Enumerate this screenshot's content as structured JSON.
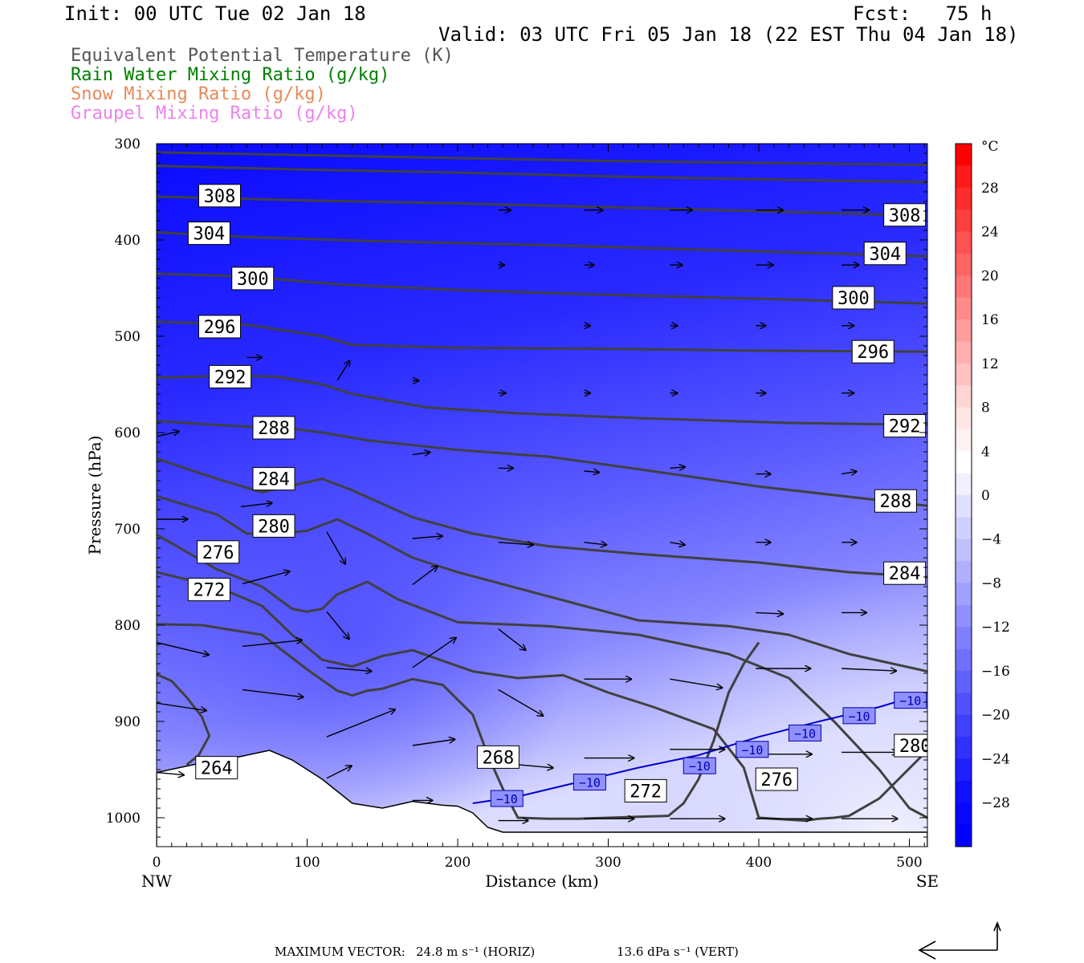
{
  "header": {
    "init": "Init: 00 UTC Tue 02 Jan 18",
    "fcst": "Fcst:   75 h",
    "valid": "Valid: 03 UTC Fri 05 Jan 18 (22 EST Thu 04 Jan 18)"
  },
  "legend": [
    {
      "label": "Equivalent Potential Temperature (K)",
      "color": "#555555"
    },
    {
      "label": "Rain Water Mixing Ratio (g/kg)",
      "color": "#008000"
    },
    {
      "label": "Snow Mixing Ratio (g/kg)",
      "color": "#e8895a"
    },
    {
      "label": "Graupel Mixing Ratio (g/kg)",
      "color": "#ee82ee"
    }
  ],
  "footer": {
    "max_vector_label": "MAXIMUM VECTOR:",
    "horiz": "24.8 m s⁻¹ (HORIZ)",
    "vert": "13.6 dPa s⁻¹ (VERT)"
  },
  "chart_data": {
    "type": "cross-section",
    "xlabel": "Distance (km)",
    "ylabel": "Pressure (hPa)",
    "xlim": [
      0,
      512
    ],
    "ylim": [
      1030,
      300
    ],
    "x_ticks": [
      0,
      100,
      200,
      300,
      400,
      500
    ],
    "y_ticks": [
      300,
      400,
      500,
      600,
      700,
      800,
      900,
      1000
    ],
    "x_end_labels": {
      "left": "NW",
      "right": "SE"
    },
    "colorbar": {
      "unit": "°C",
      "tick_labels": [
        "28",
        "24",
        "20",
        "16",
        "12",
        "8",
        "4",
        "0",
        "−4",
        "−8",
        "−12",
        "−16",
        "−20",
        "−24",
        "−28"
      ],
      "levels": [
        32,
        30,
        28,
        26,
        24,
        22,
        20,
        18,
        16,
        14,
        12,
        10,
        8,
        6,
        4,
        2,
        0,
        -2,
        -4,
        -6,
        -8,
        -10,
        -12,
        -14,
        -16,
        -18,
        -20,
        -22,
        -24,
        -26,
        -28,
        -30,
        -32
      ],
      "colors": [
        "#ff0000",
        "#ff1a1a",
        "#ff2d2d",
        "#ff3f3f",
        "#ff5252",
        "#ff6464",
        "#ff7777",
        "#ff8a8a",
        "#ff9c9c",
        "#ffafaf",
        "#ffc1c1",
        "#ffd4d4",
        "#ffe6e6",
        "#fff2f2",
        "#ffffff",
        "#f0f0ff",
        "#e0e0ff",
        "#d0d0ff",
        "#c0c0ff",
        "#b0b0ff",
        "#a0a0ff",
        "#9090ff",
        "#8080ff",
        "#7070ff",
        "#6060ff",
        "#5050ff",
        "#4040ff",
        "#3030ff",
        "#2020ff",
        "#1010ff",
        "#0808ff",
        "#0000ff"
      ]
    },
    "theta_e_labels": [
      {
        "text": "308",
        "x": 28,
        "p": 354
      },
      {
        "text": "308",
        "x": 483,
        "p": 374
      },
      {
        "text": "304",
        "x": 21,
        "p": 393
      },
      {
        "text": "304",
        "x": 470,
        "p": 414
      },
      {
        "text": "300",
        "x": 50,
        "p": 440
      },
      {
        "text": "300",
        "x": 449,
        "p": 460
      },
      {
        "text": "296",
        "x": 28,
        "p": 490
      },
      {
        "text": "296",
        "x": 462,
        "p": 516
      },
      {
        "text": "292",
        "x": 35,
        "p": 542
      },
      {
        "text": "292",
        "x": 483,
        "p": 593
      },
      {
        "text": "288",
        "x": 64,
        "p": 595
      },
      {
        "text": "288",
        "x": 477,
        "p": 671
      },
      {
        "text": "284",
        "x": 64,
        "p": 648
      },
      {
        "text": "284",
        "x": 483,
        "p": 746
      },
      {
        "text": "280",
        "x": 64,
        "p": 697
      },
      {
        "text": "280",
        "x": 490,
        "p": 925
      },
      {
        "text": "276",
        "x": 27,
        "p": 724
      },
      {
        "text": "276",
        "x": 398,
        "p": 960
      },
      {
        "text": "272",
        "x": 21,
        "p": 763
      },
      {
        "text": "272",
        "x": 311,
        "p": 972
      },
      {
        "text": "268",
        "x": 213,
        "p": 937
      },
      {
        "text": "264",
        "x": 26,
        "p": 948
      }
    ],
    "temp_minus10_labels": [
      {
        "text": "−10",
        "x": 222,
        "p": 980
      },
      {
        "text": "−10",
        "x": 277,
        "p": 963
      },
      {
        "text": "−10",
        "x": 350,
        "p": 946
      },
      {
        "text": "−10",
        "x": 385,
        "p": 929
      },
      {
        "text": "−10",
        "x": 420,
        "p": 912
      },
      {
        "text": "−10",
        "x": 456,
        "p": 894
      },
      {
        "text": "−10",
        "x": 490,
        "p": 878
      }
    ],
    "theta_e_lines": [
      {
        "x": [
          0,
          100,
          200,
          300,
          400,
          512
        ],
        "p": [
          309,
          312,
          315,
          318,
          320,
          322
        ]
      },
      {
        "x": [
          0,
          100,
          200,
          300,
          400,
          512
        ],
        "p": [
          323,
          327,
          330,
          334,
          337,
          340
        ]
      },
      {
        "x": [
          0,
          100,
          200,
          300,
          400,
          512
        ],
        "p": [
          355,
          359,
          362,
          366,
          370,
          375
        ]
      },
      {
        "x": [
          0,
          60,
          140,
          250,
          360,
          512
        ],
        "p": [
          392,
          397,
          401,
          405,
          410,
          417
        ]
      },
      {
        "x": [
          0,
          60,
          120,
          200,
          300,
          400,
          512
        ],
        "p": [
          435,
          438,
          446,
          452,
          457,
          461,
          466
        ]
      },
      {
        "x": [
          0,
          60,
          110,
          130,
          200,
          300,
          400,
          512
        ],
        "p": [
          485,
          488,
          500,
          509,
          512,
          513,
          515,
          516
        ]
      },
      {
        "x": [
          0,
          50,
          80,
          110,
          130,
          180,
          240,
          320,
          420,
          512
        ],
        "p": [
          543,
          541,
          542,
          550,
          560,
          574,
          580,
          585,
          590,
          592
        ]
      },
      {
        "x": [
          0,
          50,
          90,
          110,
          140,
          200,
          260,
          320,
          400,
          512
        ],
        "p": [
          588,
          593,
          596,
          600,
          608,
          618,
          625,
          638,
          656,
          676
        ]
      },
      {
        "x": [
          0,
          40,
          70,
          90,
          110,
          130,
          170,
          210,
          260,
          320,
          400,
          460,
          512
        ],
        "p": [
          627,
          648,
          662,
          655,
          648,
          660,
          688,
          705,
          718,
          726,
          735,
          745,
          750
        ]
      },
      {
        "x": [
          0,
          40,
          60,
          80,
          100,
          120,
          140,
          170,
          200,
          260,
          320,
          380,
          420,
          460,
          512
        ],
        "p": [
          666,
          685,
          705,
          705,
          702,
          690,
          705,
          730,
          745,
          770,
          795,
          801,
          810,
          830,
          848
        ]
      },
      {
        "x": [
          0,
          40,
          70,
          90,
          100,
          110,
          120,
          140,
          160,
          200,
          260,
          320,
          380,
          420,
          450,
          480,
          500,
          512
        ],
        "p": [
          706,
          742,
          760,
          783,
          786,
          783,
          768,
          755,
          773,
          797,
          801,
          810,
          830,
          855,
          900,
          950,
          990,
          1000
        ]
      },
      {
        "x": [
          0,
          40,
          70,
          90,
          110,
          130,
          150,
          170,
          210,
          240,
          270,
          300,
          330,
          370,
          390,
          400,
          410,
          420,
          430,
          440,
          450,
          460,
          480,
          512
        ],
        "p": [
          745,
          760,
          780,
          810,
          836,
          843,
          832,
          826,
          848,
          855,
          852,
          870,
          885,
          908,
          948,
          1000,
          1001,
          1002,
          1003,
          1001,
          1000,
          998,
          980,
          930
        ]
      },
      {
        "x": [
          0,
          30,
          70,
          100,
          120,
          130,
          140,
          150,
          170,
          190,
          210,
          220,
          230,
          240,
          260,
          280,
          300,
          320,
          340,
          350,
          360,
          370,
          380,
          390,
          400
        ],
        "p": [
          799,
          800,
          810,
          846,
          868,
          873,
          868,
          866,
          856,
          862,
          893,
          935,
          970,
          1000,
          1001,
          1001,
          1000,
          999,
          998,
          985,
          960,
          920,
          870,
          840,
          818
        ]
      },
      {
        "x": [
          0,
          10,
          20,
          30,
          35,
          28,
          20
        ],
        "p": [
          851,
          858,
          875,
          895,
          915,
          935,
          945
        ]
      }
    ],
    "vectors": [
      {
        "x": 120,
        "p": 546,
        "u": 10,
        "w": -16
      },
      {
        "x": 60,
        "p": 522,
        "u": 12,
        "w": 0
      },
      {
        "x": 0,
        "p": 604,
        "u": 18,
        "w": -4
      },
      {
        "x": 0,
        "p": 690,
        "u": 25,
        "w": 0
      },
      {
        "x": 56,
        "p": 677,
        "u": 25,
        "w": -3
      },
      {
        "x": 113,
        "p": 703,
        "u": 15,
        "w": 26
      },
      {
        "x": 0,
        "p": 818,
        "u": 42,
        "w": 10
      },
      {
        "x": 0,
        "p": 881,
        "u": 40,
        "w": 6
      },
      {
        "x": 57,
        "p": 822,
        "u": 48,
        "w": -5
      },
      {
        "x": 57,
        "p": 867,
        "u": 49,
        "w": 6
      },
      {
        "x": 57,
        "p": 757,
        "u": 38,
        "w": -10
      },
      {
        "x": 113,
        "p": 786,
        "u": 18,
        "w": 22
      },
      {
        "x": 113,
        "p": 844,
        "u": 36,
        "w": 3
      },
      {
        "x": 113,
        "p": 916,
        "u": 55,
        "w": -22
      },
      {
        "x": 170,
        "p": 758,
        "u": 20,
        "w": -15
      },
      {
        "x": 170,
        "p": 710,
        "u": 24,
        "w": -2
      },
      {
        "x": 170,
        "p": 844,
        "u": 35,
        "w": -24
      },
      {
        "x": 170,
        "p": 925,
        "u": 34,
        "w": -5
      },
      {
        "x": 227,
        "p": 714,
        "u": 28,
        "w": 2
      },
      {
        "x": 227,
        "p": 804,
        "u": 22,
        "w": 17
      },
      {
        "x": 227,
        "p": 867,
        "u": 36,
        "w": 21
      },
      {
        "x": 227,
        "p": 943,
        "u": 44,
        "w": 4
      },
      {
        "x": 284,
        "p": 714,
        "u": 18,
        "w": 2
      },
      {
        "x": 284,
        "p": 856,
        "u": 38,
        "w": 0
      },
      {
        "x": 284,
        "p": 938,
        "u": 40,
        "w": 0
      },
      {
        "x": 341,
        "p": 714,
        "u": 12,
        "w": 2
      },
      {
        "x": 341,
        "p": 856,
        "u": 42,
        "w": 7
      },
      {
        "x": 341,
        "p": 929,
        "u": 44,
        "w": 0
      },
      {
        "x": 398,
        "p": 787,
        "u": 22,
        "w": 1
      },
      {
        "x": 398,
        "p": 845,
        "u": 44,
        "w": 0
      },
      {
        "x": 398,
        "p": 934,
        "u": 45,
        "w": 0
      },
      {
        "x": 455,
        "p": 787,
        "u": 20,
        "w": 0
      },
      {
        "x": 455,
        "p": 845,
        "u": 44,
        "w": 2
      },
      {
        "x": 455,
        "p": 932,
        "u": 45,
        "w": 0
      },
      {
        "x": 398,
        "p": 643,
        "u": 12,
        "w": 0
      },
      {
        "x": 455,
        "p": 643,
        "u": 12,
        "w": -2
      },
      {
        "x": 284,
        "p": 640,
        "u": 12,
        "w": 1
      },
      {
        "x": 341,
        "p": 637,
        "u": 12,
        "w": -1
      },
      {
        "x": 227,
        "p": 637,
        "u": 12,
        "w": 0
      },
      {
        "x": 170,
        "p": 623,
        "u": 14,
        "w": -2
      },
      {
        "x": 398,
        "p": 714,
        "u": 12,
        "w": 0
      },
      {
        "x": 455,
        "p": 714,
        "u": 12,
        "w": 0
      },
      {
        "x": 284,
        "p": 369,
        "u": 15,
        "w": 0
      },
      {
        "x": 341,
        "p": 369,
        "u": 18,
        "w": 0
      },
      {
        "x": 398,
        "p": 369,
        "u": 22,
        "w": 0
      },
      {
        "x": 455,
        "p": 369,
        "u": 22,
        "w": 0
      },
      {
        "x": 398,
        "p": 426,
        "u": 14,
        "w": 0
      },
      {
        "x": 455,
        "p": 426,
        "u": 14,
        "w": 0
      },
      {
        "x": 227,
        "p": 369,
        "u": 10,
        "w": 0
      },
      {
        "x": 284,
        "p": 426,
        "u": 8,
        "w": 0
      },
      {
        "x": 341,
        "p": 426,
        "u": 10,
        "w": 0
      },
      {
        "x": 227,
        "p": 426,
        "u": 5,
        "w": 0
      },
      {
        "x": 455,
        "p": 489,
        "u": 10,
        "w": 0
      },
      {
        "x": 398,
        "p": 489,
        "u": 8,
        "w": 0
      },
      {
        "x": 341,
        "p": 489,
        "u": 6,
        "w": 0
      },
      {
        "x": 284,
        "p": 489,
        "u": 5,
        "w": 0
      },
      {
        "x": 455,
        "p": 559,
        "u": 10,
        "w": 0
      },
      {
        "x": 398,
        "p": 559,
        "u": 8,
        "w": 0
      },
      {
        "x": 341,
        "p": 559,
        "u": 6,
        "w": 0
      },
      {
        "x": 284,
        "p": 559,
        "u": 5,
        "w": 0
      },
      {
        "x": 227,
        "p": 559,
        "u": 6,
        "w": 0
      },
      {
        "x": 170,
        "p": 546,
        "u": 5,
        "w": 0
      },
      {
        "x": 113,
        "p": 959,
        "u": 20,
        "w": -10
      },
      {
        "x": 170,
        "p": 982,
        "u": 16,
        "w": 0
      },
      {
        "x": 227,
        "p": 1003,
        "u": 24,
        "w": 0
      },
      {
        "x": 284,
        "p": 1001,
        "u": 40,
        "w": 0
      },
      {
        "x": 341,
        "p": 1001,
        "u": 44,
        "w": 0
      },
      {
        "x": 398,
        "p": 1001,
        "u": 45,
        "w": 0
      },
      {
        "x": 455,
        "p": 1001,
        "u": 45,
        "w": 0
      },
      {
        "x": 0,
        "p": 953,
        "u": 22,
        "w": 2
      }
    ],
    "terrain": {
      "x": [
        0,
        15,
        30,
        45,
        60,
        75,
        90,
        110,
        130,
        150,
        170,
        190,
        200,
        210,
        220,
        230,
        260,
        300,
        400,
        512
      ],
      "p": [
        953,
        948,
        943,
        940,
        935,
        930,
        940,
        960,
        985,
        990,
        983,
        987,
        988,
        995,
        1010,
        1015,
        1015,
        1015,
        1015,
        1015
      ]
    },
    "temp_minus10_line": {
      "x": [
        210,
        240,
        280,
        320,
        360,
        400,
        440,
        480,
        512
      ],
      "p": [
        985,
        978,
        963,
        948,
        935,
        916,
        900,
        885,
        870
      ]
    }
  }
}
